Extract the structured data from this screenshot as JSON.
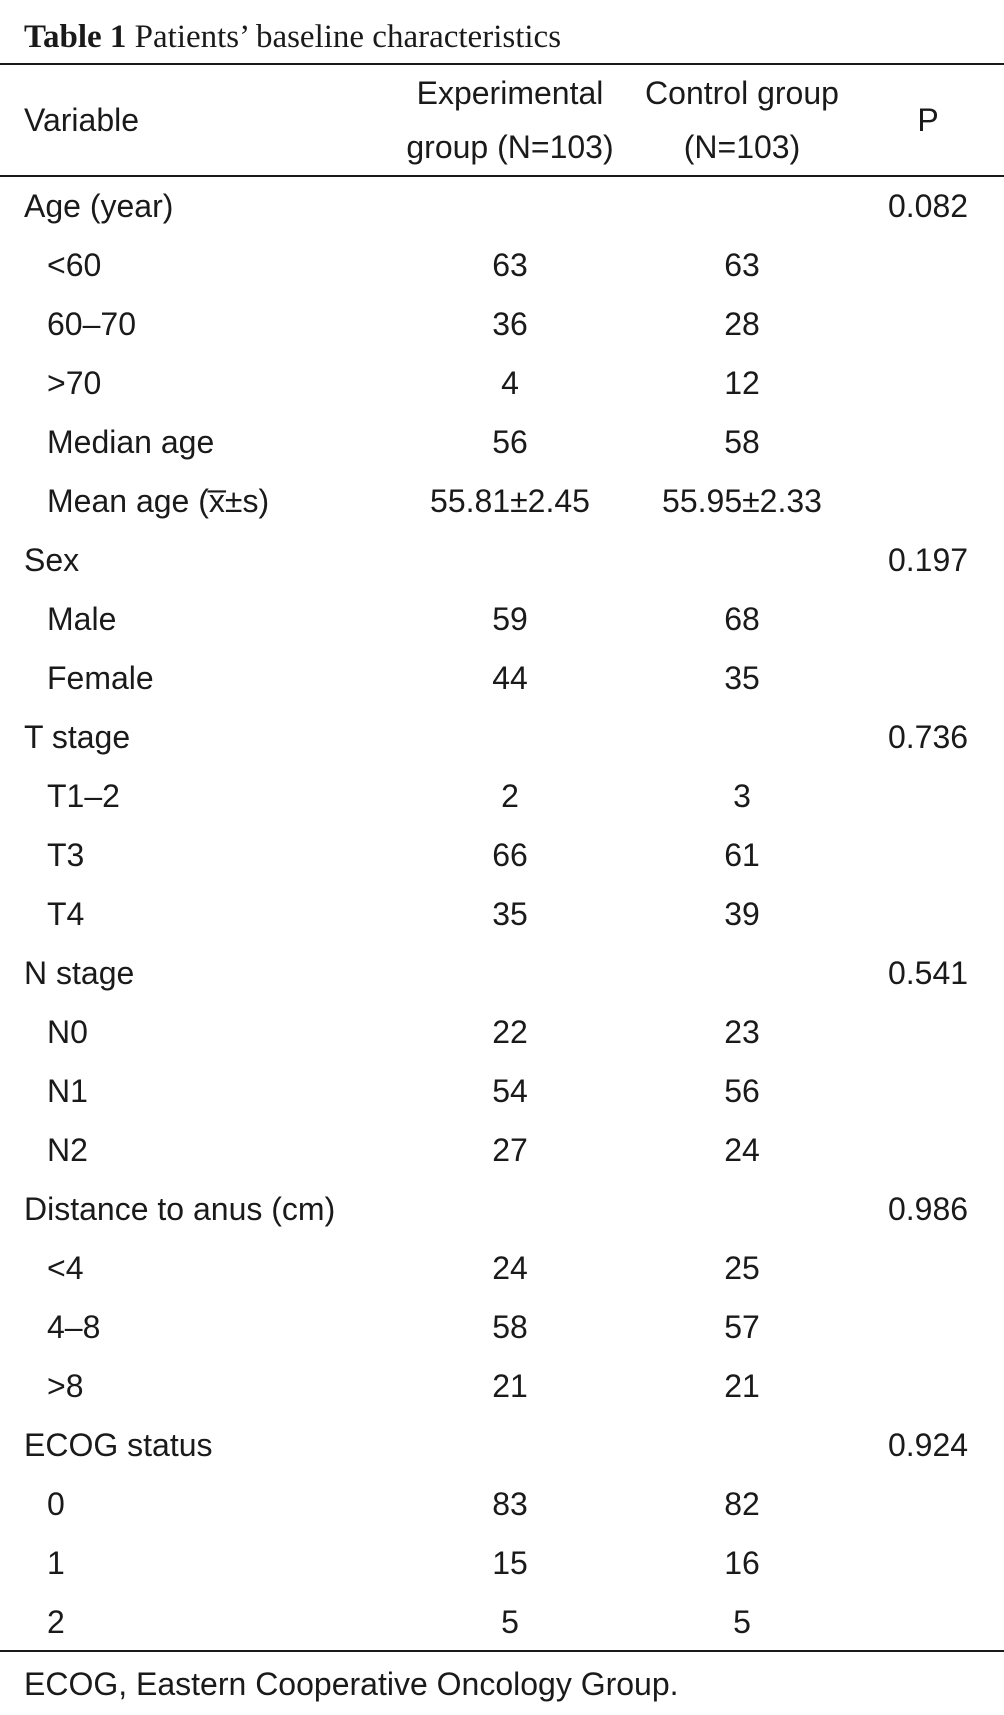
{
  "caption": {
    "label": "Table 1",
    "title": "Patients’ baseline characteristics"
  },
  "header": {
    "variable": "Variable",
    "experimental_line1": "Experimental",
    "experimental_line2": "group (N=103)",
    "control_line1": "Control group",
    "control_line2": "(N=103)",
    "p": "P"
  },
  "rows": [
    {
      "variable": "Age (year)",
      "exp": "",
      "ctl": "",
      "p": "0.082",
      "sub": false
    },
    {
      "variable": "<60",
      "exp": "63",
      "ctl": "63",
      "p": "",
      "sub": true
    },
    {
      "variable": "60–70",
      "exp": "36",
      "ctl": "28",
      "p": "",
      "sub": true
    },
    {
      "variable": ">70",
      "exp": "4",
      "ctl": "12",
      "p": "",
      "sub": true
    },
    {
      "variable": "Median age",
      "exp": "56",
      "ctl": "58",
      "p": "",
      "sub": true
    },
    {
      "variable": "Mean age (x̅±s)",
      "exp": "55.81±2.45",
      "ctl": "55.95±2.33",
      "p": "",
      "sub": true
    },
    {
      "variable": "Sex",
      "exp": "",
      "ctl": "",
      "p": "0.197",
      "sub": false
    },
    {
      "variable": "Male",
      "exp": "59",
      "ctl": "68",
      "p": "",
      "sub": true
    },
    {
      "variable": "Female",
      "exp": "44",
      "ctl": "35",
      "p": "",
      "sub": true
    },
    {
      "variable": "T stage",
      "exp": "",
      "ctl": "",
      "p": "0.736",
      "sub": false
    },
    {
      "variable": "T1–2",
      "exp": "2",
      "ctl": "3",
      "p": "",
      "sub": true
    },
    {
      "variable": "T3",
      "exp": "66",
      "ctl": "61",
      "p": "",
      "sub": true
    },
    {
      "variable": "T4",
      "exp": "35",
      "ctl": "39",
      "p": "",
      "sub": true
    },
    {
      "variable": "N stage",
      "exp": "",
      "ctl": "",
      "p": "0.541",
      "sub": false
    },
    {
      "variable": "N0",
      "exp": "22",
      "ctl": "23",
      "p": "",
      "sub": true
    },
    {
      "variable": "N1",
      "exp": "54",
      "ctl": "56",
      "p": "",
      "sub": true
    },
    {
      "variable": "N2",
      "exp": "27",
      "ctl": "24",
      "p": "",
      "sub": true
    },
    {
      "variable": "Distance to anus (cm)",
      "exp": "",
      "ctl": "",
      "p": "0.986",
      "sub": false
    },
    {
      "variable": "<4",
      "exp": "24",
      "ctl": "25",
      "p": "",
      "sub": true
    },
    {
      "variable": "4–8",
      "exp": "58",
      "ctl": "57",
      "p": "",
      "sub": true
    },
    {
      "variable": ">8",
      "exp": "21",
      "ctl": "21",
      "p": "",
      "sub": true
    },
    {
      "variable": "ECOG status",
      "exp": "",
      "ctl": "",
      "p": "0.924",
      "sub": false
    },
    {
      "variable": "0",
      "exp": "83",
      "ctl": "82",
      "p": "",
      "sub": true
    },
    {
      "variable": "1",
      "exp": "15",
      "ctl": "16",
      "p": "",
      "sub": true
    },
    {
      "variable": "2",
      "exp": "5",
      "ctl": "5",
      "p": "",
      "sub": true
    }
  ],
  "footnote": "ECOG, Eastern Cooperative Oncology Group."
}
